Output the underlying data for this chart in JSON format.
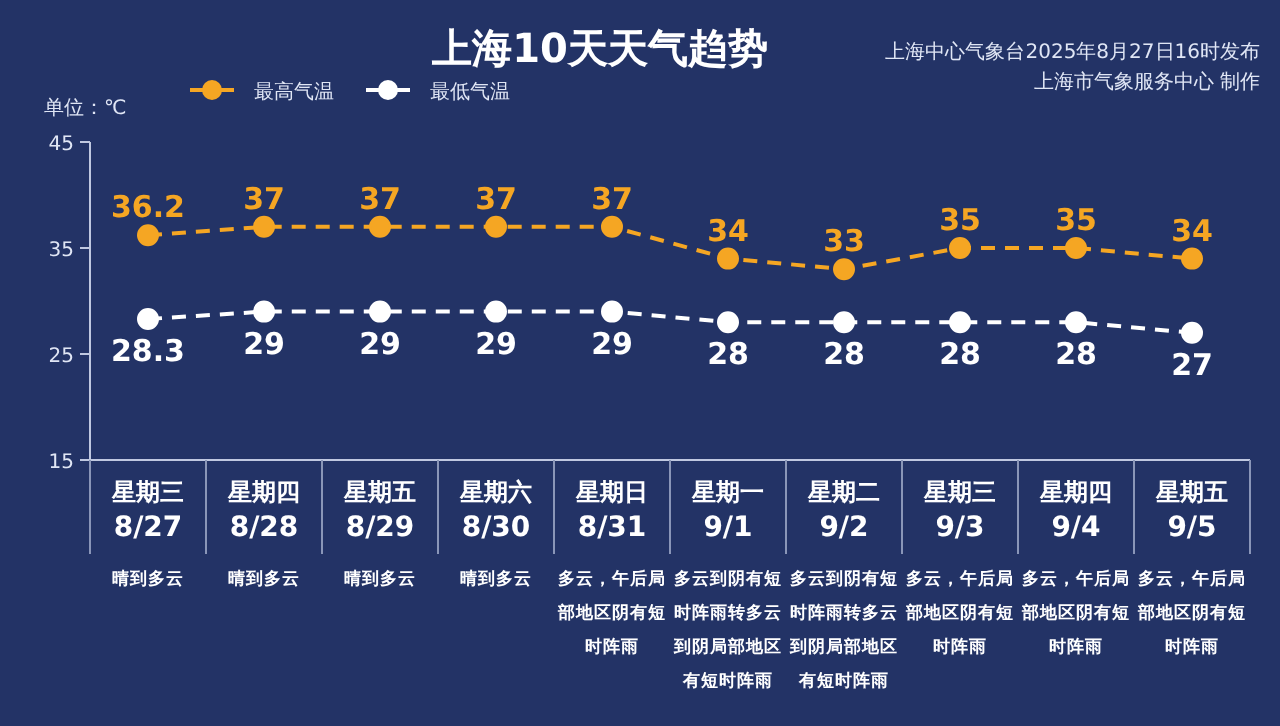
{
  "chart_data": {
    "type": "line",
    "title": "上海10天天气趋势",
    "ylabel": "单位：℃",
    "categories": [
      "星期三\n8/27",
      "星期四\n8/28",
      "星期五\n8/29",
      "星期六\n8/30",
      "星期日\n8/31",
      "星期一\n9/1",
      "星期二\n9/2",
      "星期三\n9/3",
      "星期四\n9/4",
      "星期五\n9/5"
    ],
    "series": [
      {
        "name": "最高气温",
        "color": "#f5a623",
        "values": [
          36.2,
          37,
          37,
          37,
          37,
          34,
          33,
          35,
          35,
          34
        ]
      },
      {
        "name": "最低气温",
        "color": "#ffffff",
        "values": [
          28.3,
          29,
          29,
          29,
          29,
          28,
          28,
          28,
          28,
          27
        ]
      }
    ],
    "ylim": [
      15,
      45
    ],
    "yticks": [
      15,
      25,
      35,
      45
    ],
    "grid": false,
    "legend": "top left",
    "marker": "circle",
    "line_style": "dashed",
    "data_labels": true,
    "annotations": [
      "上海中心气象台2025年8月27日16时发布",
      "上海市气象服务中心 制作",
      "晴到多云",
      "晴到多云",
      "晴到多云",
      "晴到多云",
      "多云，午后局部地区阴有短时阵雨",
      "多云到阴有短时阵雨转多云到阴局部地区有短时阵雨",
      "多云到阴有短时阵雨转多云到阴局部地区有短时阵雨",
      "多云，午后局部地区阴有短时阵雨",
      "多云，午后局部地区阴有短时阵雨",
      "多云，午后局部地区阴有短时阵雨"
    ]
  }
}
